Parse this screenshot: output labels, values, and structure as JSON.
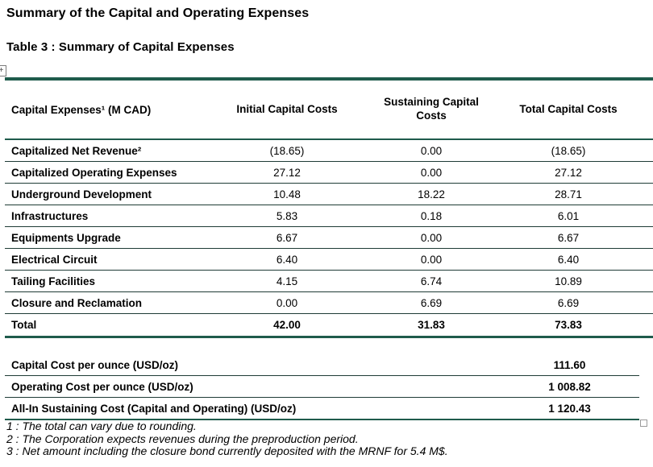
{
  "page": {
    "title": "Summary of the Capital and Operating Expenses",
    "table_caption": "Table 3 : Summary of Capital Expenses"
  },
  "colors": {
    "accent_green": "#1F5B4C",
    "row_separator": "#1e3b35"
  },
  "icons": {
    "move_handle_glyph": "+"
  },
  "capital_table": {
    "columns": [
      "Capital Expenses¹ (M CAD)",
      "Initial Capital Costs",
      "Sustaining Capital Costs",
      "Total Capital Costs"
    ],
    "rows": [
      {
        "label": "Capitalized Net Revenue²",
        "initial": "(18.65)",
        "sustaining": "0.00",
        "total": "(18.65)"
      },
      {
        "label": "Capitalized Operating Expenses",
        "initial": "27.12",
        "sustaining": "0.00",
        "total": "27.12"
      },
      {
        "label": "Underground Development",
        "initial": "10.48",
        "sustaining": "18.22",
        "total": "28.71"
      },
      {
        "label": "Infrastructures",
        "initial": "5.83",
        "sustaining": "0.18",
        "total": "6.01"
      },
      {
        "label": "Equipments Upgrade",
        "initial": "6.67",
        "sustaining": "0.00",
        "total": "6.67"
      },
      {
        "label": "Electrical Circuit",
        "initial": "6.40",
        "sustaining": "0.00",
        "total": "6.40"
      },
      {
        "label": "Tailing Facilities",
        "initial": "4.15",
        "sustaining": "6.74",
        "total": "10.89"
      },
      {
        "label": "Closure and Reclamation",
        "initial": "0.00",
        "sustaining": "6.69",
        "total": "6.69"
      }
    ],
    "total_row": {
      "label": "Total",
      "initial": "42.00",
      "sustaining": "31.83",
      "total": "73.83"
    }
  },
  "summary_table": {
    "rows": [
      {
        "label": "Capital Cost per ounce (USD/oz)",
        "value": "111.60"
      },
      {
        "label": "Operating Cost per ounce (USD/oz)",
        "value": "1 008.82"
      },
      {
        "label": "All-In Sustaining Cost (Capital and Operating) (USD/oz)",
        "value": "1 120.43"
      }
    ]
  },
  "footnotes": [
    "1 : The total can vary due to rounding.",
    "2 : The Corporation expects revenues during the preproduction period.",
    "3 : Net amount including the closure bond currently deposited with the MRNF for 5.4 M$."
  ]
}
